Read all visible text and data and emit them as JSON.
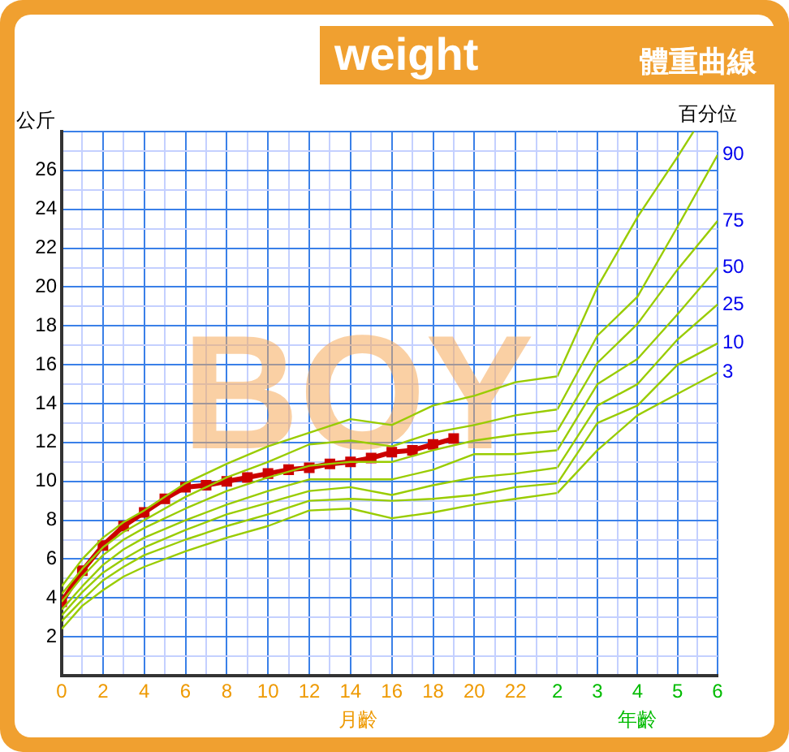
{
  "chart_data": [
    {
      "type": "line",
      "title": "weight",
      "ylabel": "公斤",
      "xlabel": "月齡",
      "annotations": [
        "BOY"
      ],
      "xlim": [
        0,
        24
      ],
      "ylim": [
        0,
        28
      ],
      "xticks": [
        0,
        {
          "value": 1,
          "label": null
        },
        2,
        {
          "value": 3,
          "label": null
        },
        4,
        {
          "value": 5,
          "label": null
        },
        6,
        {
          "value": 7,
          "label": null
        },
        8,
        {
          "value": 9,
          "label": null
        },
        10,
        {
          "value": 11,
          "label": null
        },
        12,
        {
          "value": 13,
          "label": null
        },
        14,
        {
          "value": 15,
          "label": null
        },
        16,
        {
          "value": 17,
          "label": null
        },
        18,
        {
          "value": 19,
          "label": null
        },
        20,
        {
          "value": 21,
          "label": null
        },
        22,
        {
          "value": 23,
          "label": null
        },
        {
          "value": 24,
          "label": null
        }
      ],
      "yticks": [
        {
          "value": 0,
          "label": null
        },
        {
          "value": 1,
          "label": null
        },
        2,
        {
          "value": 3,
          "label": null
        },
        4,
        {
          "value": 5,
          "label": null
        },
        6,
        {
          "value": 7,
          "label": null
        },
        8,
        {
          "value": 9,
          "label": null
        },
        10,
        {
          "value": 11,
          "label": null
        },
        12,
        {
          "value": 13,
          "label": null
        },
        14,
        {
          "value": 15,
          "label": null
        },
        16,
        {
          "value": 17,
          "label": null
        },
        18,
        {
          "value": 19,
          "label": null
        },
        20,
        {
          "value": 21,
          "label": null
        },
        22,
        {
          "value": 23,
          "label": null
        },
        24,
        {
          "value": 25,
          "label": null
        },
        26,
        {
          "value": 27,
          "label": null
        },
        {
          "value": 28,
          "label": null
        }
      ],
      "grid": true,
      "legend": false,
      "marker": "none",
      "line_style": "solid",
      "series": [
        {
          "color": "#99cc00",
          "x": [
            0,
            1,
            2,
            3,
            4,
            6,
            8,
            10,
            12,
            14,
            16,
            18,
            20,
            22,
            24
          ],
          "values": [
            4.6,
            6.0,
            7.1,
            7.9,
            8.5,
            9.9,
            10.9,
            11.8,
            12.5,
            13.2,
            12.9,
            13.9,
            14.4,
            15.1,
            15.4
          ]
        },
        {
          "color": "#99cc00",
          "x": [
            0,
            1,
            2,
            3,
            4,
            6,
            8,
            10,
            12,
            14,
            16,
            18,
            20,
            22,
            24
          ],
          "values": [
            4.2,
            5.5,
            6.6,
            7.4,
            8.0,
            9.2,
            10.2,
            11.0,
            11.9,
            12.1,
            11.8,
            12.5,
            12.9,
            13.4,
            13.7
          ]
        },
        {
          "color": "#99cc00",
          "x": [
            0,
            1,
            2,
            3,
            4,
            6,
            8,
            10,
            12,
            14,
            16,
            18,
            20,
            22,
            24
          ],
          "values": [
            3.8,
            5.1,
            6.2,
            7.0,
            7.6,
            8.6,
            9.5,
            10.2,
            10.8,
            11.0,
            11.0,
            11.6,
            12.1,
            12.4,
            12.6
          ]
        },
        {
          "color": "#99cc00",
          "x": [
            0,
            1,
            2,
            3,
            4,
            6,
            8,
            10,
            12,
            14,
            16,
            18,
            20,
            22,
            24
          ],
          "values": [
            3.4,
            4.6,
            5.7,
            6.5,
            7.1,
            8.0,
            8.8,
            9.5,
            10.1,
            10.1,
            10.1,
            10.6,
            11.4,
            11.4,
            11.6
          ]
        },
        {
          "color": "#99cc00",
          "x": [
            0,
            1,
            2,
            3,
            4,
            6,
            8,
            10,
            12,
            14,
            16,
            18,
            20,
            22,
            24
          ],
          "values": [
            3.1,
            4.3,
            5.3,
            6.0,
            6.6,
            7.5,
            8.3,
            8.9,
            9.5,
            9.7,
            9.3,
            9.8,
            10.2,
            10.4,
            10.7
          ]
        },
        {
          "color": "#99cc00",
          "x": [
            0,
            1,
            2,
            3,
            4,
            6,
            8,
            10,
            12,
            14,
            16,
            18,
            20,
            22,
            24
          ],
          "values": [
            2.8,
            3.9,
            4.9,
            5.6,
            6.2,
            7.0,
            7.7,
            8.3,
            9.0,
            9.1,
            9.0,
            9.1,
            9.3,
            9.7,
            9.9
          ]
        },
        {
          "color": "#99cc00",
          "x": [
            0,
            1,
            2,
            3,
            4,
            6,
            8,
            10,
            12,
            14,
            16,
            18,
            20,
            22,
            24
          ],
          "values": [
            2.4,
            3.6,
            4.4,
            5.1,
            5.6,
            6.4,
            7.1,
            7.7,
            8.5,
            8.6,
            8.1,
            8.4,
            8.8,
            9.1,
            9.4
          ]
        },
        {
          "color": "#cc0000",
          "marker": "square",
          "x": [
            0,
            1,
            2,
            3,
            4,
            5,
            6,
            7,
            8,
            9,
            10,
            11,
            12,
            13,
            14,
            15,
            16,
            17,
            18,
            19
          ],
          "values": [
            3.8,
            5.4,
            6.7,
            7.7,
            8.4,
            9.1,
            9.7,
            9.8,
            10.0,
            10.2,
            10.4,
            10.6,
            10.7,
            10.9,
            11.0,
            11.2,
            11.5,
            11.6,
            11.9,
            12.2
          ]
        }
      ]
    },
    {
      "type": "line",
      "title": "體重曲線",
      "xlabel": "年齡",
      "annotations": [
        "百分位"
      ],
      "xlim": [
        2,
        6
      ],
      "ylim": [
        0,
        28
      ],
      "tick_labels": "x",
      "xticks": [
        2,
        {
          "value": 2.5,
          "label": null
        },
        3,
        {
          "value": 3.5,
          "label": null
        },
        4,
        {
          "value": 4.5,
          "label": null
        },
        5,
        {
          "value": 5.5,
          "label": null
        },
        6
      ],
      "yticks": [
        {
          "value": 0,
          "label": null
        },
        {
          "value": 1,
          "label": null
        },
        {
          "value": 2,
          "label": null
        },
        {
          "value": 3,
          "label": null
        },
        {
          "value": 4,
          "label": null
        },
        {
          "value": 5,
          "label": null
        },
        {
          "value": 6,
          "label": null
        },
        {
          "value": 7,
          "label": null
        },
        {
          "value": 8,
          "label": null
        },
        {
          "value": 9,
          "label": null
        },
        {
          "value": 10,
          "label": null
        },
        {
          "value": 11,
          "label": null
        },
        {
          "value": 12,
          "label": null
        },
        {
          "value": 13,
          "label": null
        },
        {
          "value": 14,
          "label": null
        },
        {
          "value": 15,
          "label": null
        },
        {
          "value": 16,
          "label": null
        },
        {
          "value": 17,
          "label": null
        },
        {
          "value": 18,
          "label": null
        },
        {
          "value": 19,
          "label": null
        },
        {
          "value": 20,
          "label": null
        },
        {
          "value": 21,
          "label": null
        },
        {
          "value": 22,
          "label": null
        },
        {
          "value": 23,
          "label": null
        },
        {
          "value": 24,
          "label": null
        },
        {
          "value": 25,
          "label": null
        },
        {
          "value": 26,
          "label": null
        },
        {
          "value": 27,
          "label": null
        },
        {
          "value": 28,
          "label": null
        }
      ],
      "grid": true,
      "legend": false,
      "line_style": "solid",
      "series": [
        {
          "color": "#99cc00",
          "x": [
            2,
            3,
            4,
            5,
            5.4
          ],
          "values": [
            15.4,
            20.0,
            23.6,
            26.7,
            28
          ]
        },
        {
          "name": "90",
          "color": "#99cc00",
          "x": [
            2,
            3,
            4,
            5,
            6
          ],
          "values": [
            13.7,
            17.5,
            19.5,
            23.1,
            26.8
          ]
        },
        {
          "name": "75",
          "color": "#99cc00",
          "x": [
            2,
            3,
            4,
            5,
            6
          ],
          "values": [
            12.6,
            16.1,
            18.1,
            20.9,
            23.4
          ]
        },
        {
          "name": "50",
          "color": "#99cc00",
          "x": [
            2,
            3,
            4,
            5,
            6
          ],
          "values": [
            11.6,
            15.0,
            16.3,
            18.6,
            21.0
          ]
        },
        {
          "name": "25",
          "color": "#99cc00",
          "x": [
            2,
            3,
            4,
            5,
            6
          ],
          "values": [
            10.7,
            13.9,
            15.0,
            17.3,
            19.1
          ]
        },
        {
          "name": "10",
          "color": "#99cc00",
          "x": [
            2,
            3,
            4,
            5,
            6
          ],
          "values": [
            9.9,
            13.0,
            13.9,
            16.0,
            17.1
          ]
        },
        {
          "name": "3",
          "color": "#99cc00",
          "x": [
            2,
            3,
            4,
            5,
            6
          ],
          "values": [
            9.4,
            11.6,
            13.4,
            14.5,
            15.6
          ]
        }
      ]
    }
  ]
}
